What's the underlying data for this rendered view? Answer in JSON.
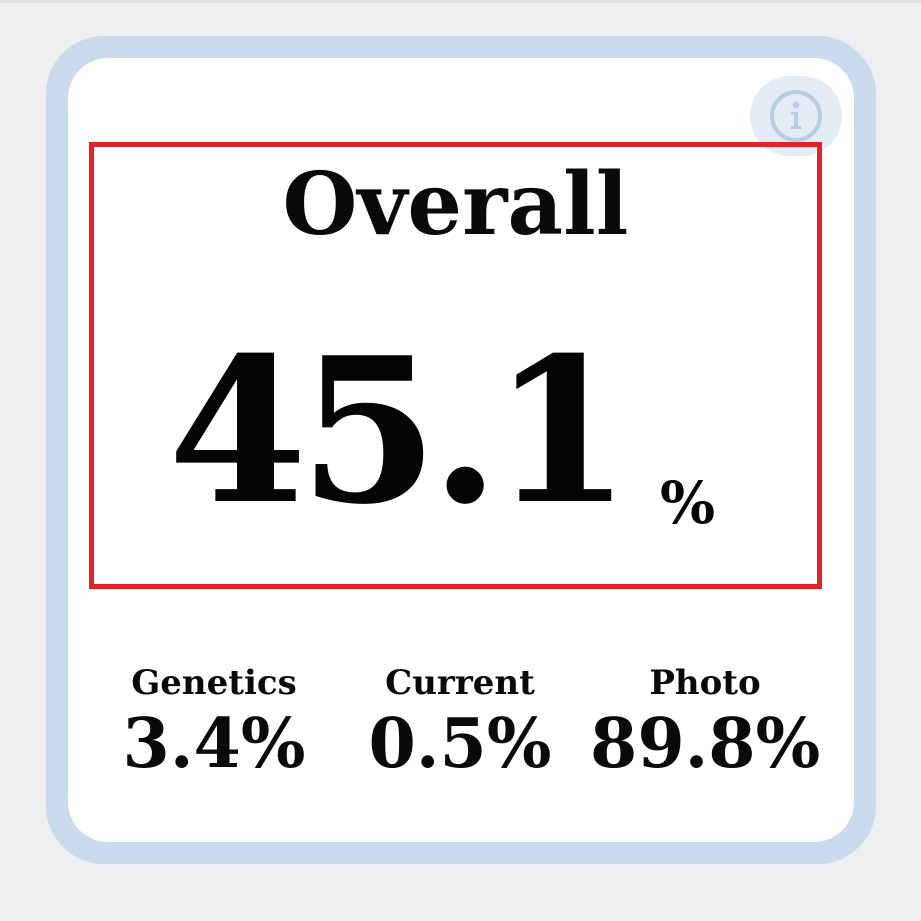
{
  "overall": {
    "title": "Overall",
    "value": "45.1",
    "unit": "%",
    "level_percent": 45.1
  },
  "metrics": [
    {
      "label": "Genetics",
      "value": "3.4%"
    },
    {
      "label": "Current",
      "value": "0.5%"
    },
    {
      "label": "Photo",
      "value": "89.8%"
    }
  ],
  "info_button": {
    "icon": "info-icon"
  },
  "colors": {
    "page_background": "#eeeff1",
    "card_border": "#c9dbec",
    "card_background": "#ffffff",
    "info_button_background": "#e4ecf5",
    "info_icon": "#b7cde4",
    "highlight_border": "#e0222b",
    "text": "#0a0a0a"
  }
}
